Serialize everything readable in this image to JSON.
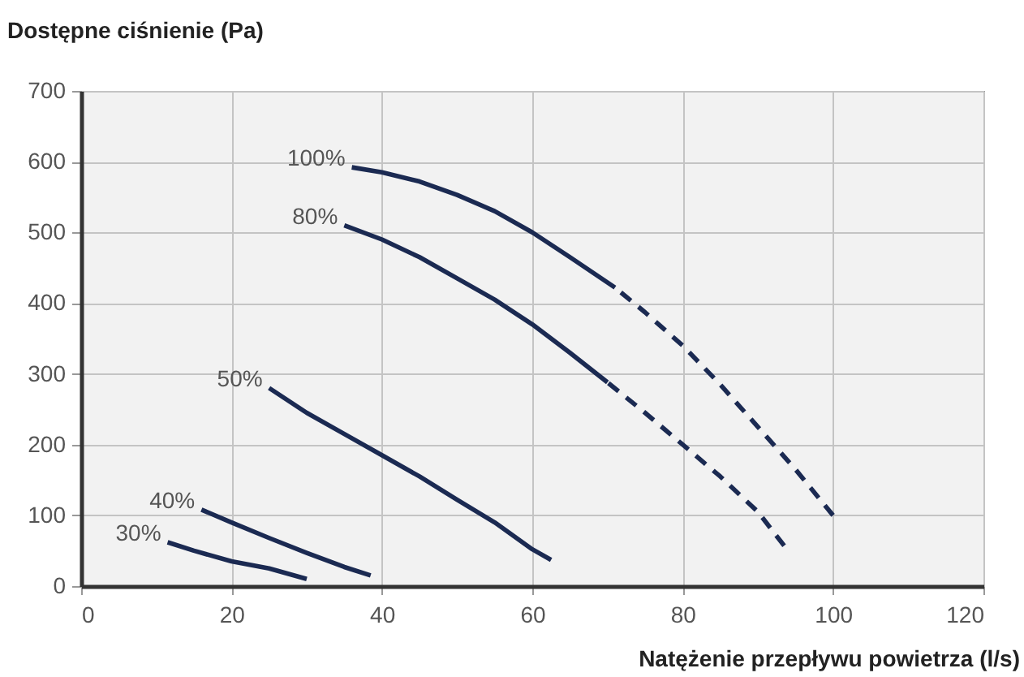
{
  "chart_data": {
    "type": "line",
    "xlabel": "Natężenie przepływu powietrza (l/s)",
    "ylabel": "Dostępne ciśnienie (Pa)",
    "xlim": [
      0,
      120
    ],
    "xticks": [
      0,
      20,
      40,
      60,
      80,
      100,
      120
    ],
    "ylim": [
      0,
      700
    ],
    "yticks": [
      0,
      100,
      200,
      300,
      400,
      500,
      600,
      700
    ],
    "grid": true,
    "marker": "none",
    "series": [
      {
        "name": "100%",
        "color": "#1b2a52",
        "line_style": "solid",
        "x": [
          36,
          40,
          45,
          50,
          55,
          60,
          65,
          71
        ],
        "values": [
          592,
          585,
          572,
          553,
          530,
          500,
          465,
          422
        ]
      },
      {
        "color": "#1b2a52",
        "line_style": "dashed",
        "x": [
          71,
          75,
          80,
          85,
          90,
          95,
          100
        ],
        "values": [
          422,
          387,
          340,
          285,
          225,
          165,
          100
        ]
      },
      {
        "name": "80%",
        "color": "#1b2a52",
        "line_style": "solid",
        "x": [
          35,
          40,
          45,
          50,
          55,
          60,
          65,
          70
        ],
        "values": [
          510,
          490,
          465,
          435,
          405,
          370,
          330,
          288
        ]
      },
      {
        "color": "#1b2a52",
        "line_style": "dashed",
        "x": [
          70,
          75,
          80,
          85,
          90,
          93.5
        ],
        "values": [
          288,
          245,
          200,
          155,
          105,
          57
        ]
      },
      {
        "name": "50%",
        "color": "#1b2a52",
        "line_style": "solid",
        "x": [
          25,
          30,
          35,
          40,
          45,
          50,
          55,
          60,
          62.5
        ],
        "values": [
          280,
          245,
          215,
          185,
          155,
          122,
          90,
          52,
          37
        ]
      },
      {
        "name": "40%",
        "color": "#1b2a52",
        "line_style": "solid",
        "x": [
          16,
          20,
          25,
          30,
          35,
          38.5
        ],
        "values": [
          108,
          90,
          68,
          47,
          27,
          15
        ]
      },
      {
        "name": "30%",
        "color": "#1b2a52",
        "line_style": "solid",
        "x": [
          11.5,
          15,
          20,
          25,
          30
        ],
        "values": [
          62,
          50,
          35,
          25,
          10
        ]
      }
    ]
  }
}
